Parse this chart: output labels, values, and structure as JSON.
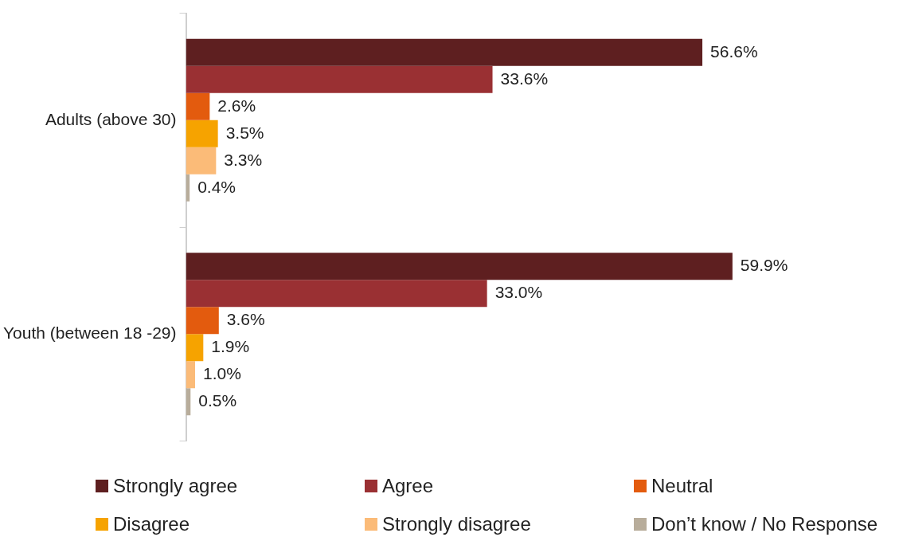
{
  "chart_data": {
    "type": "bar",
    "orientation": "horizontal",
    "categories": [
      "Adults (above 30)",
      "Youth (between 18 -29)"
    ],
    "legend": "bottom",
    "tick_labels": "y",
    "series": [
      {
        "name": "Strongly agree",
        "color": "#5e1f20",
        "values": [
          56.6,
          59.9
        ],
        "value_labels": [
          "56.6%",
          "59.9%"
        ]
      },
      {
        "name": "Agree",
        "color": "#9a3033",
        "values": [
          33.6,
          33.0
        ],
        "value_labels": [
          "33.6%",
          "33.0%"
        ]
      },
      {
        "name": "Neutral",
        "color": "#e35b0e",
        "values": [
          2.6,
          3.6
        ],
        "value_labels": [
          "2.6%",
          "3.6%"
        ]
      },
      {
        "name": "Disagree",
        "color": "#f6a300",
        "values": [
          3.5,
          1.9
        ],
        "value_labels": [
          "3.5%",
          "1.9%"
        ]
      },
      {
        "name": "Strongly disagree",
        "color": "#fbbb78",
        "values": [
          3.3,
          1.0
        ],
        "value_labels": [
          "3.3%",
          "1.0%"
        ]
      },
      {
        "name": "Don’t know / No Response",
        "color": "#b8ad9b",
        "values": [
          0.4,
          0.5
        ],
        "value_labels": [
          "0.4%",
          "0.5%"
        ]
      }
    ]
  }
}
